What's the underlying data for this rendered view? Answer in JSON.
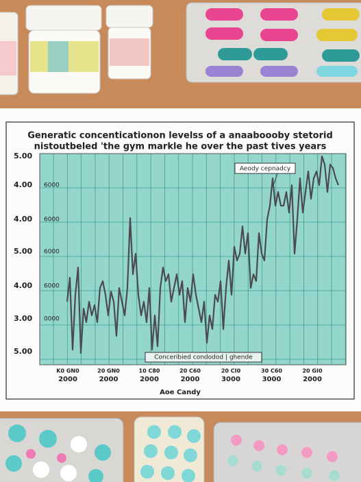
{
  "chart_photo": {
    "title": "Generatic concenticationon levelss of a anaaboooby stetorid",
    "subtitle": "nistoutbeled 'the gym markle he over the past tives years",
    "y_labels": [
      "5.00",
      "4.00",
      "4.00",
      "5.00",
      "4.00",
      "3.00",
      "5.00"
    ],
    "y_inner_labels": [
      "6000",
      "6000",
      "6000",
      "6000",
      "0000"
    ],
    "annotation": "Aeody cepnadcy",
    "legend_box": "Conceribied condodod | ghende",
    "x_labels": [
      {
        "top": "K0 GN0",
        "bottom": "2000"
      },
      {
        "top": "20 GN0",
        "bottom": "2000"
      },
      {
        "top": "10 C80",
        "bottom": "2000"
      },
      {
        "top": "20 C60",
        "bottom": "2000"
      },
      {
        "top": "20 CI0",
        "bottom": "3000"
      },
      {
        "top": "30 C60",
        "bottom": "3000"
      },
      {
        "top": "20 GI0",
        "bottom": "2000"
      }
    ],
    "footer": "Aoe Candy"
  }
}
